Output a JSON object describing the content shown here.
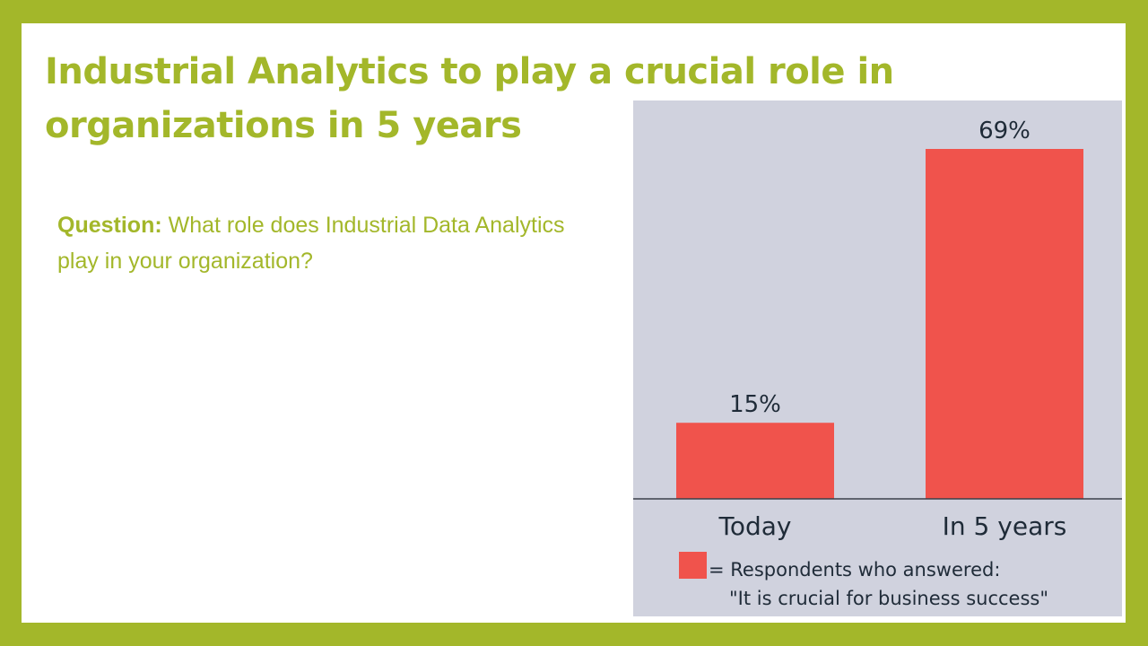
{
  "theme": {
    "frame_color": "#a3b72a",
    "accent_color": "#a3b72a",
    "chart_bg": "#d0d2de",
    "bar_color": "#f0534c",
    "axis_color": "#3a3f4a",
    "text_dark": "#1f2b38"
  },
  "slide": {
    "title": "Industrial Analytics to play a crucial role in organizations in 5 years",
    "question_label": "Question:",
    "question_text": "What role does Industrial Data Analytics play in your organization?"
  },
  "chart_data": {
    "type": "bar",
    "categories": [
      "Today",
      "In 5 years"
    ],
    "values": [
      15,
      69
    ],
    "data_labels": [
      "15%",
      "69%"
    ],
    "ylim": [
      0,
      69
    ],
    "grid": false,
    "legend": {
      "placement": "bottom-left",
      "line1": "= Respondents who answered:",
      "line2": "\"It is crucial for business success\""
    }
  }
}
